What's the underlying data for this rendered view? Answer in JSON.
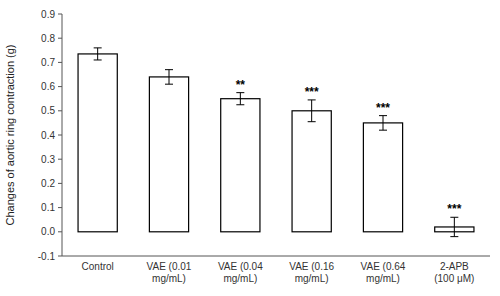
{
  "chart_data": {
    "type": "bar",
    "ylabel": "Changes of aortic ring contraction (g)",
    "categories": [
      "Control",
      "VAE (0.01\nmg/mL)",
      "VAE (0.04\nmg/mL)",
      "VAE (0.16\nmg/mL)",
      "VAE (0.64\nmg/mL)",
      "2-APB\n(100 μM)"
    ],
    "values": [
      0.735,
      0.64,
      0.55,
      0.5,
      0.45,
      0.02
    ],
    "errors": [
      0.025,
      0.03,
      0.025,
      0.045,
      0.03,
      0.04
    ],
    "significance": [
      null,
      null,
      "**",
      "***",
      "***",
      "***"
    ],
    "color": "#ffffff",
    "ylim": [
      -0.1,
      0.9
    ],
    "yticks": [
      -0.1,
      {
        "value": 0.0,
        "label": "0.0"
      },
      0.1,
      0.2,
      0.3,
      0.4,
      0.5,
      0.6,
      0.7,
      0.8,
      0.9
    ],
    "grid": false
  }
}
